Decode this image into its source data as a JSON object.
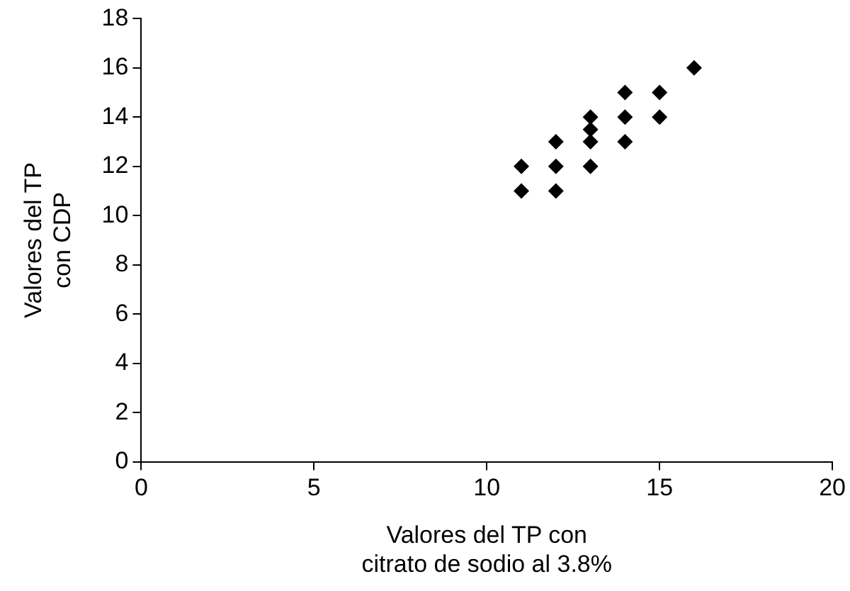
{
  "chart_data": {
    "type": "scatter",
    "xlabel": "Valores del TP con\ncitrato de sodio al 3.8%",
    "ylabel": "Valores del TP\ncon CDP",
    "x": [
      11,
      11,
      12,
      12,
      12,
      13,
      13,
      13,
      13,
      14,
      14,
      14,
      15,
      15,
      16
    ],
    "series": [
      {
        "color": "#000000",
        "values": [
          11,
          12,
          11,
          12,
          13,
          12,
          13,
          13.5,
          14,
          13,
          14,
          15,
          14,
          15,
          16
        ]
      }
    ],
    "xlim": [
      0,
      20
    ],
    "xticks": [
      0,
      5,
      10,
      15,
      20
    ],
    "ylim": [
      0,
      18
    ],
    "yticks": [
      0,
      2,
      4,
      6,
      8,
      10,
      12,
      14,
      16,
      18
    ],
    "grid": false,
    "legend": false,
    "marker": "diamond"
  }
}
